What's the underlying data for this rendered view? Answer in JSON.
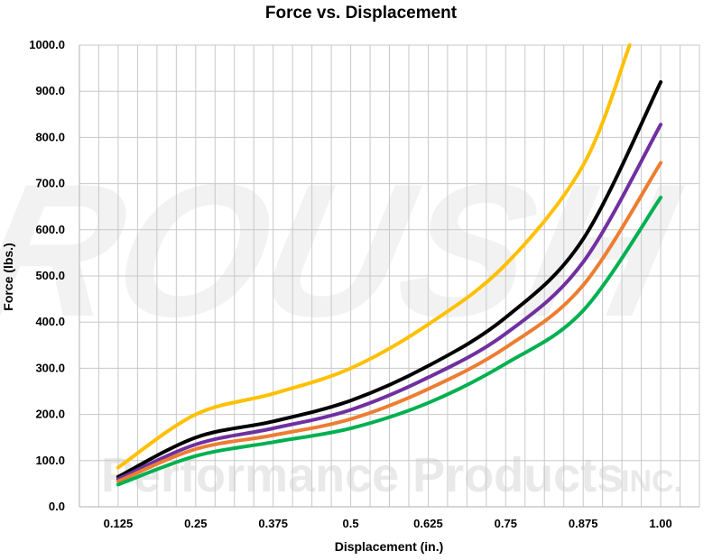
{
  "chart_data": {
    "type": "line",
    "title": "Force vs. Displacement",
    "xlabel": "Displacement (in.)",
    "ylabel": "Force (lbs.)",
    "x": [
      0.125,
      0.25,
      0.375,
      0.5,
      0.625,
      0.75,
      0.875,
      1.0
    ],
    "x_tick_labels": [
      "0.125",
      "0.25",
      "0.375",
      "0.5",
      "0.625",
      "0.75",
      "0.875",
      "1.00"
    ],
    "y_tick_labels": [
      "0.0",
      "100.0",
      "200.0",
      "300.0",
      "400.0",
      "500.0",
      "600.0",
      "700.0",
      "800.0",
      "900.0",
      "1000.0"
    ],
    "xlim": [
      0.0625,
      1.0625
    ],
    "ylim": [
      0,
      1000
    ],
    "grid": true,
    "legend": "none",
    "series": [
      {
        "color": "#ffc000",
        "x": [
          0.125,
          0.25,
          0.375,
          0.5,
          0.625,
          0.75,
          0.875,
          0.95
        ],
        "values": [
          85,
          200,
          245,
          300,
          395,
          525,
          740,
          1000
        ]
      },
      {
        "color": "#000000",
        "x": [
          0.125,
          0.25,
          0.375,
          0.5,
          0.625,
          0.75,
          0.875,
          1.0
        ],
        "values": [
          65,
          150,
          185,
          230,
          305,
          410,
          580,
          920
        ]
      },
      {
        "color": "#7030a0",
        "x": [
          0.125,
          0.25,
          0.375,
          0.5,
          0.625,
          0.75,
          0.875,
          1.0
        ],
        "values": [
          60,
          135,
          170,
          210,
          280,
          375,
          530,
          828
        ]
      },
      {
        "color": "#ed7d31",
        "x": [
          0.125,
          0.25,
          0.375,
          0.5,
          0.625,
          0.75,
          0.875,
          1.0
        ],
        "values": [
          55,
          125,
          155,
          190,
          255,
          345,
          480,
          745
        ]
      },
      {
        "color": "#00b050",
        "x": [
          0.125,
          0.25,
          0.375,
          0.5,
          0.625,
          0.75,
          0.875,
          1.0
        ],
        "values": [
          48,
          110,
          140,
          170,
          225,
          310,
          425,
          670
        ]
      }
    ]
  },
  "watermark": {
    "brand": "ROUSH",
    "company": "Performance Products",
    "suffix": "INC."
  }
}
